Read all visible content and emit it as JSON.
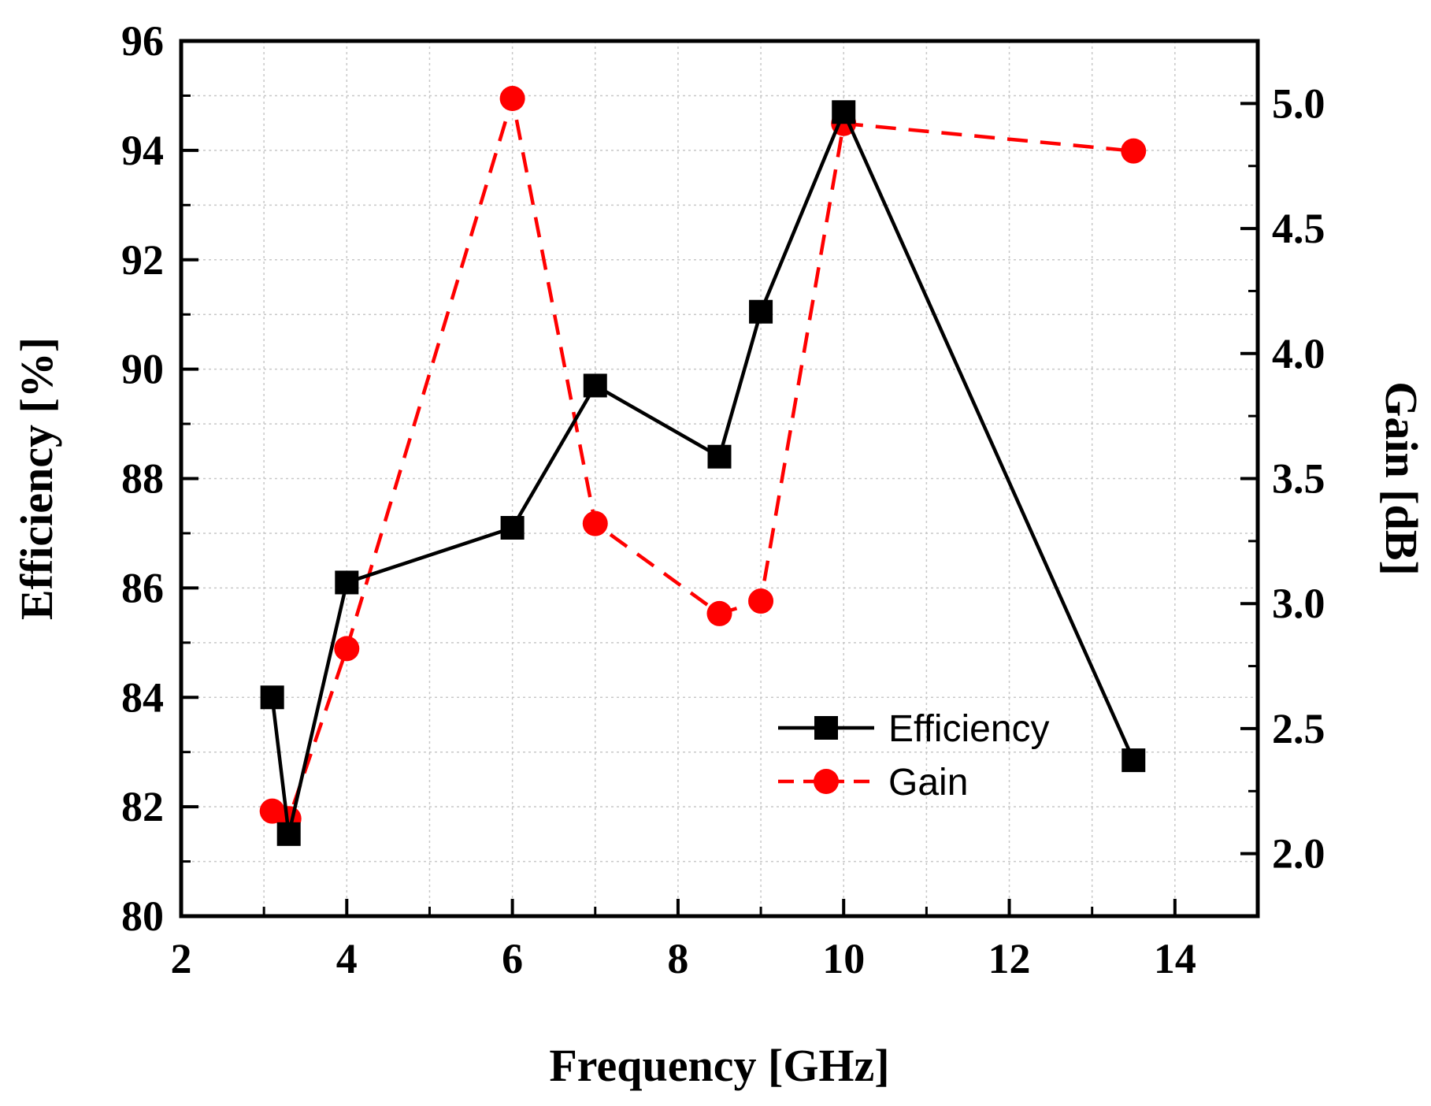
{
  "chart_data": {
    "type": "line",
    "xlabel": "Frequency [GHz]",
    "ylabel_left": "Efficiency [%]",
    "ylabel_right": "Gain [dB]",
    "xlim": [
      2,
      15
    ],
    "ylim_left": [
      80,
      96
    ],
    "ylim_right": [
      1.75,
      5.25
    ],
    "x_ticks": [
      "2",
      "4",
      "6",
      "8",
      "10",
      "12",
      "14"
    ],
    "y_left_ticks": [
      "80",
      "82",
      "84",
      "86",
      "88",
      "90",
      "92",
      "94",
      "96"
    ],
    "y_right_ticks": [
      "2.0",
      "2.5",
      "3.0",
      "3.5",
      "4.0",
      "4.5",
      "5.0"
    ],
    "grid": true,
    "legend_position": "bottom-right",
    "series": [
      {
        "name": "Efficiency",
        "axis": "left",
        "color": "#000000",
        "line_style": "solid",
        "marker": "square",
        "x": [
          3.1,
          3.3,
          4.0,
          6.0,
          7.0,
          8.5,
          9.0,
          10.0,
          13.5
        ],
        "y": [
          84.0,
          81.5,
          86.1,
          87.1,
          89.7,
          88.4,
          91.05,
          94.7,
          82.85
        ]
      },
      {
        "name": "Gain",
        "axis": "right",
        "color": "#ff0000",
        "line_style": "dashed",
        "marker": "circle",
        "x": [
          3.1,
          3.3,
          4.0,
          6.0,
          7.0,
          8.5,
          9.0,
          10.0,
          13.5
        ],
        "y": [
          2.17,
          2.14,
          2.82,
          5.02,
          3.32,
          2.96,
          3.01,
          4.92,
          4.81
        ]
      }
    ]
  }
}
